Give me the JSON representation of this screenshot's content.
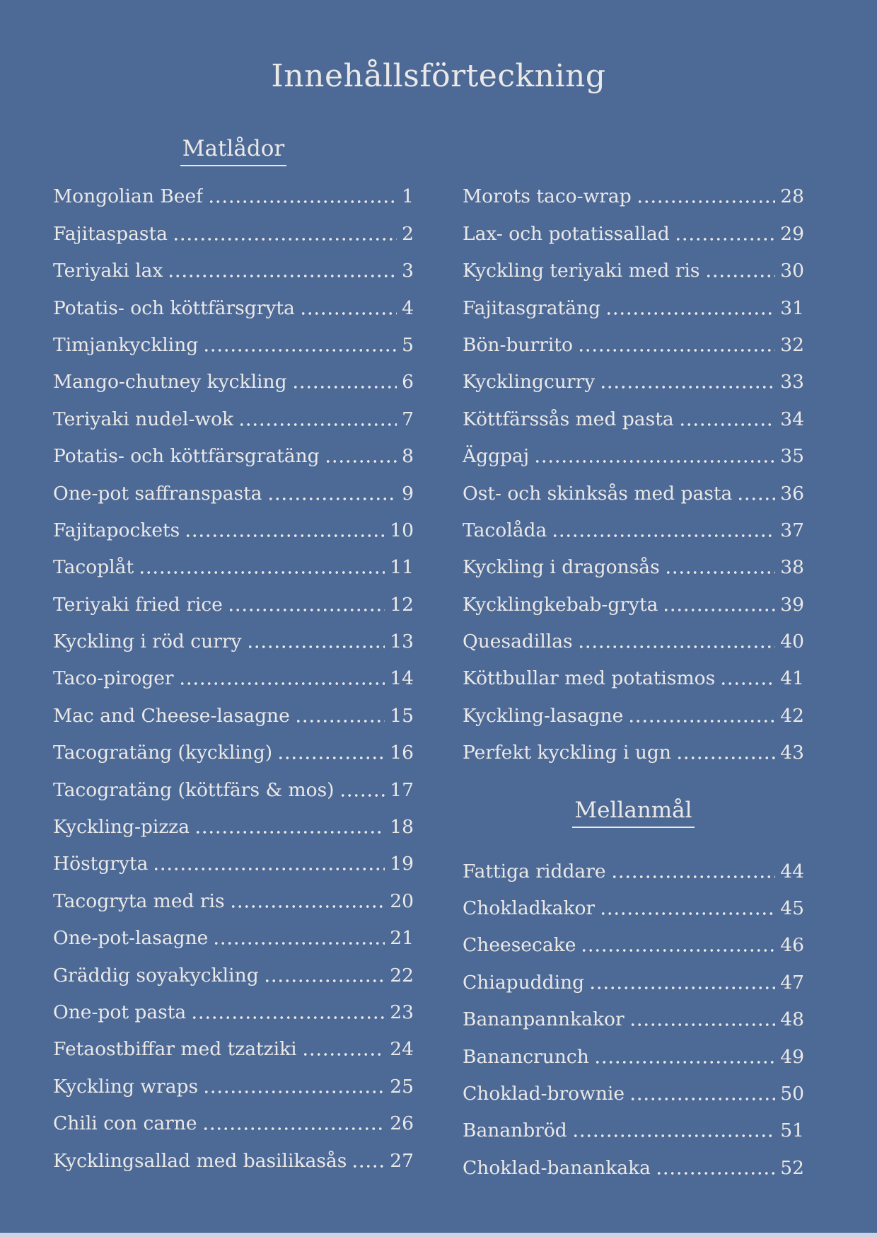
{
  "page": {
    "title": "Innehållsförteckning",
    "background_color": "#4d6a97",
    "text_color": "#ebe9e7",
    "bottom_strip_color": "#ccd4e4"
  },
  "toc": {
    "section_names": [
      "Matlådor",
      "Mellanmål"
    ],
    "columns": [
      {
        "blocks": [
          {
            "type": "header",
            "text": "Matlådor"
          },
          {
            "type": "entry",
            "title": "Mongolian Beef",
            "page": "1"
          },
          {
            "type": "entry",
            "title": "Fajitaspasta",
            "page": "2"
          },
          {
            "type": "entry",
            "title": "Teriyaki lax",
            "page": "3"
          },
          {
            "type": "entry",
            "title": "Potatis- och köttfärsgryta",
            "page": "4"
          },
          {
            "type": "entry",
            "title": "Timjankyckling",
            "page": "5"
          },
          {
            "type": "entry",
            "title": "Mango-chutney kyckling",
            "page": "6"
          },
          {
            "type": "entry",
            "title": "Teriyaki nudel-wok",
            "page": "7"
          },
          {
            "type": "entry",
            "title": "Potatis- och köttfärsgratäng",
            "page": "8"
          },
          {
            "type": "entry",
            "title": "One-pot saffranspasta",
            "page": "9"
          },
          {
            "type": "entry",
            "title": "Fajitapockets",
            "page": "10"
          },
          {
            "type": "entry",
            "title": "Tacoplåt",
            "page": "11"
          },
          {
            "type": "entry",
            "title": "Teriyaki fried rice",
            "page": "12"
          },
          {
            "type": "entry",
            "title": "Kyckling i röd curry",
            "page": "13"
          },
          {
            "type": "entry",
            "title": "Taco-piroger",
            "page": "14"
          },
          {
            "type": "entry",
            "title": "Mac and Cheese-lasagne",
            "page": "15"
          },
          {
            "type": "entry",
            "title": "Tacogratäng (kyckling)",
            "page": "16"
          },
          {
            "type": "entry",
            "title": "Tacogratäng (köttfärs & mos)",
            "page": "17"
          },
          {
            "type": "entry",
            "title": "Kyckling-pizza",
            "page": "18"
          },
          {
            "type": "entry",
            "title": "Höstgryta",
            "page": "19"
          },
          {
            "type": "entry",
            "title": "Tacogryta med ris",
            "page": "20"
          },
          {
            "type": "entry",
            "title": "One-pot-lasagne",
            "page": "21"
          },
          {
            "type": "entry",
            "title": "Gräddig soyakyckling",
            "page": "22"
          },
          {
            "type": "entry",
            "title": "One-pot pasta",
            "page": "23"
          },
          {
            "type": "entry",
            "title": "Fetaostbiffar med tzatziki",
            "page": "24"
          },
          {
            "type": "entry",
            "title": "Kyckling wraps",
            "page": "25"
          },
          {
            "type": "entry",
            "title": "Chili con carne",
            "page": "26"
          },
          {
            "type": "entry",
            "title": "Kycklingsallad med basilikasås",
            "page": "27"
          }
        ]
      },
      {
        "blocks": [
          {
            "type": "entry",
            "title": "Morots taco-wrap",
            "page": "28"
          },
          {
            "type": "entry",
            "title": "Lax- och potatissallad",
            "page": "29"
          },
          {
            "type": "entry",
            "title": "Kyckling teriyaki med ris",
            "page": "30"
          },
          {
            "type": "entry",
            "title": "Fajitasgratäng",
            "page": "31"
          },
          {
            "type": "entry",
            "title": "Bön-burrito",
            "page": "32"
          },
          {
            "type": "entry",
            "title": "Kycklingcurry",
            "page": "33"
          },
          {
            "type": "entry",
            "title": "Köttfärssås med pasta",
            "page": "34"
          },
          {
            "type": "entry",
            "title": "Äggpaj",
            "page": "35"
          },
          {
            "type": "entry",
            "title": "Ost- och skinksås med pasta",
            "page": "36"
          },
          {
            "type": "entry",
            "title": "Tacolåda",
            "page": "37"
          },
          {
            "type": "entry",
            "title": "Kyckling i dragonsås",
            "page": "38"
          },
          {
            "type": "entry",
            "title": "Kycklingkebab-gryta",
            "page": "39"
          },
          {
            "type": "entry",
            "title": "Quesadillas",
            "page": "40"
          },
          {
            "type": "entry",
            "title": "Köttbullar med potatismos",
            "page": "41"
          },
          {
            "type": "entry",
            "title": "Kyckling-lasagne",
            "page": "42"
          },
          {
            "type": "entry",
            "title": "Perfekt kyckling i ugn",
            "page": "43"
          },
          {
            "type": "header",
            "text": "Mellanmål"
          },
          {
            "type": "entry",
            "title": "Fattiga riddare",
            "page": "44"
          },
          {
            "type": "entry",
            "title": "Chokladkakor",
            "page": "45"
          },
          {
            "type": "entry",
            "title": "Cheesecake",
            "page": "46"
          },
          {
            "type": "entry",
            "title": "Chiapudding",
            "page": "47"
          },
          {
            "type": "entry",
            "title": "Bananpannkakor",
            "page": "48"
          },
          {
            "type": "entry",
            "title": "Banancrunch",
            "page": "49"
          },
          {
            "type": "entry",
            "title": "Choklad-brownie",
            "page": "50"
          },
          {
            "type": "entry",
            "title": "Bananbröd",
            "page": "51"
          },
          {
            "type": "entry",
            "title": "Choklad-banankaka",
            "page": "52"
          }
        ]
      }
    ]
  }
}
